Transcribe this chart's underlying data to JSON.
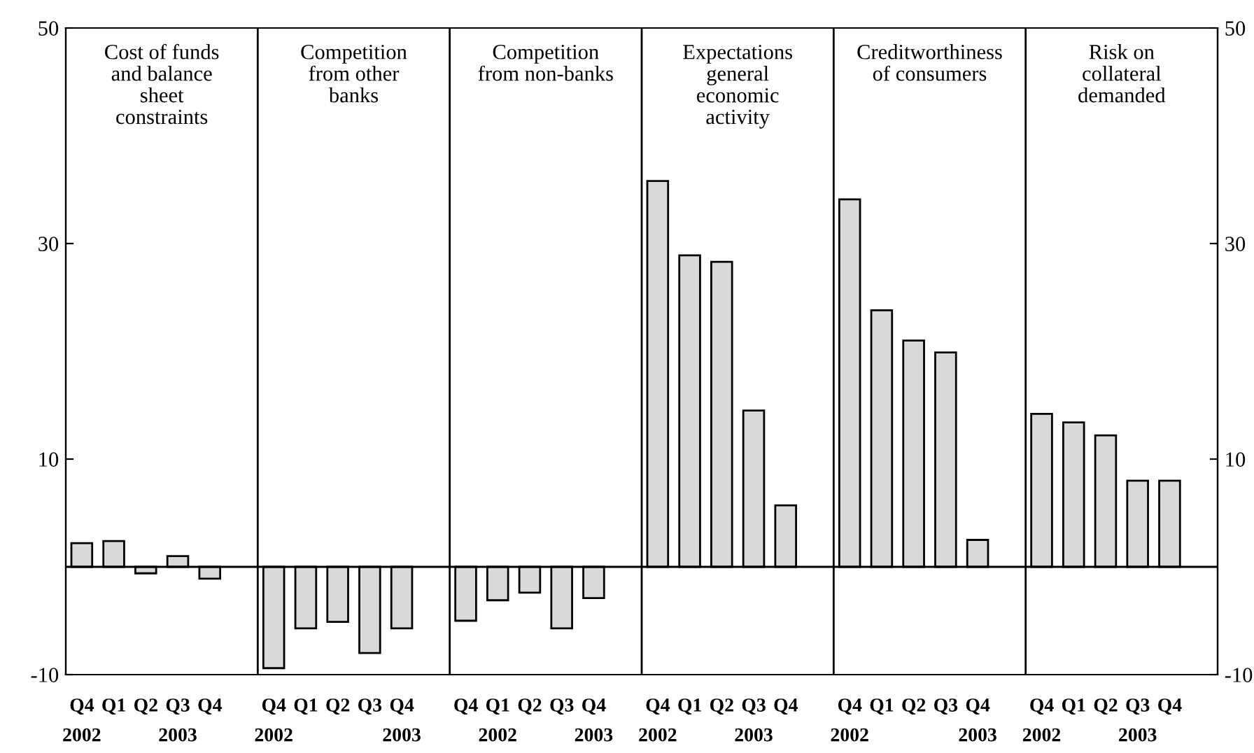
{
  "chart_data": {
    "type": "bar",
    "categories": [
      "Q4\n2002",
      "Q1",
      "Q2",
      "Q3\n2003",
      "Q4",
      null,
      "Q4\n2002",
      "Q1",
      "Q2",
      "Q3",
      "Q4\n2003",
      null,
      "Q4",
      "Q1\n2002",
      "Q2",
      "Q3",
      "Q4\n2003",
      null,
      "Q4\n2002",
      "Q1",
      "Q2",
      "Q3\n2003",
      "Q4",
      null,
      "Q4\n2002",
      "Q1",
      "Q2",
      "Q3",
      "Q4\n2003",
      null,
      "Q4\n2002",
      "Q1",
      "Q2",
      "Q3\n2003",
      "Q4",
      null
    ],
    "values": [
      2.2,
      2.4,
      -0.6,
      1.0,
      -1.1,
      null,
      -9.4,
      -5.7,
      -5.1,
      -8.0,
      -5.7,
      null,
      -5.0,
      -3.1,
      -2.4,
      -5.7,
      -2.9,
      null,
      35.8,
      28.9,
      28.3,
      14.5,
      5.7,
      null,
      34.1,
      23.8,
      21.0,
      19.9,
      2.5,
      null,
      14.2,
      13.4,
      12.2,
      8.0,
      8.0,
      null
    ],
    "color": "#d9d9d9",
    "ylim": [
      -10,
      50
    ],
    "yticks": [
      -10,
      10,
      30,
      50
    ],
    "y2lim": [
      -10,
      50
    ],
    "y2ticks": [
      -10,
      10,
      30,
      50
    ],
    "annotations": [
      "Cost of funds\nand balance\nsheet\nconstraints",
      "Competition\nfrom other\nbanks",
      "Competition\nfrom non-banks",
      "Expectations\ngeneral\neconomic\nactivity",
      "Creditworthiness\nof consumers",
      "Risk on\ncollateral\ndemanded"
    ],
    "ref_lines": [
      {
        "axis": "y",
        "value": 0,
        "color": "#000000"
      }
    ]
  }
}
